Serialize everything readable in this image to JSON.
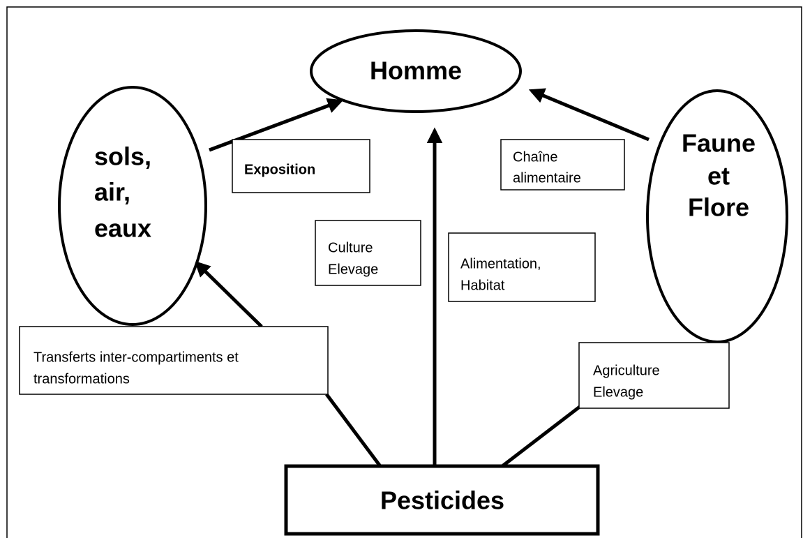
{
  "nodes": [
    {
      "id": "homme",
      "lines": [
        "Homme"
      ]
    },
    {
      "id": "milieu",
      "lines": [
        "sols,",
        "air,",
        "eaux"
      ]
    },
    {
      "id": "faune",
      "lines": [
        "Faune",
        "et",
        "Flore"
      ]
    },
    {
      "id": "pesticides",
      "lines": [
        "Pesticides"
      ]
    }
  ],
  "labels": [
    {
      "lines": [
        "Exposition"
      ]
    },
    {
      "lines": [
        "Chaîne",
        "alimentaire"
      ]
    },
    {
      "lines": [
        "Culture",
        "Elevage"
      ]
    },
    {
      "lines": [
        "Alimentation,",
        "Habitat"
      ]
    },
    {
      "lines": [
        "Transferts inter-compartiments et",
        "transformations"
      ]
    },
    {
      "lines": [
        "Agriculture",
        "Elevage"
      ]
    }
  ]
}
